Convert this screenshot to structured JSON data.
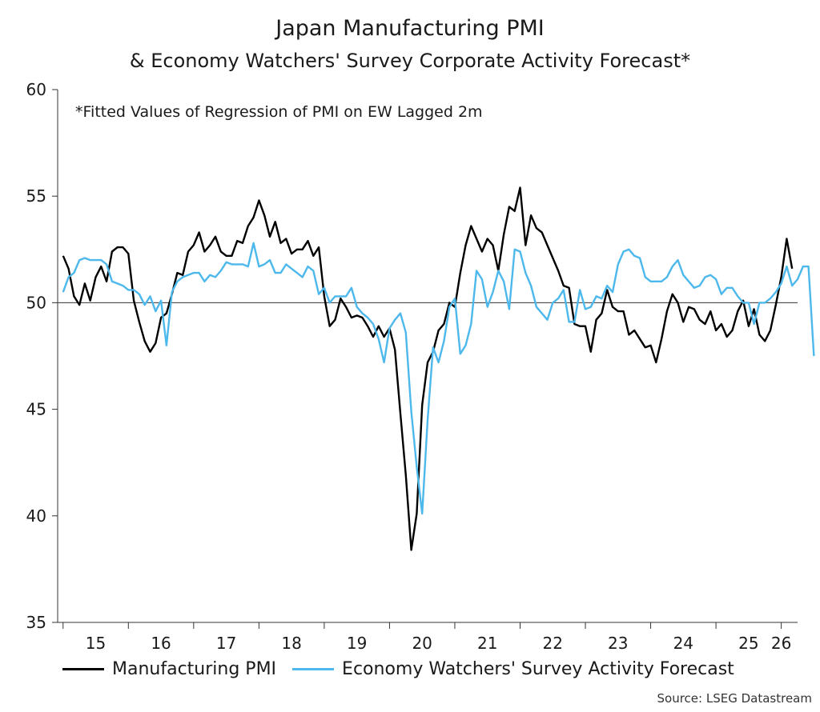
{
  "chart_data": {
    "type": "line",
    "title": "Japan Manufacturing PMI",
    "subtitle": "& Economy Watchers' Survey Corporate Activity Forecast*",
    "note": "*Fitted Values of Regression of PMI on EW Lagged 2m",
    "source": "Source: LSEG Datastream",
    "ylim": [
      35,
      60
    ],
    "yticks": [
      35,
      40,
      45,
      50,
      55,
      60
    ],
    "reference_line": 50,
    "x_start_year": 2014.917,
    "x_end_year": 2026.25,
    "xtick_labels": [
      "15",
      "16",
      "17",
      "18",
      "19",
      "20",
      "21",
      "22",
      "23",
      "24",
      "25",
      "26"
    ],
    "grid": false,
    "legend_position": "bottom",
    "series": [
      {
        "name": "Manufacturing PMI",
        "color": "#000000",
        "start": "2015-01",
        "values": [
          52.2,
          51.6,
          50.3,
          49.9,
          50.9,
          50.1,
          51.2,
          51.7,
          51.0,
          52.4,
          52.6,
          52.6,
          52.3,
          50.1,
          49.1,
          48.2,
          47.7,
          48.1,
          49.3,
          49.5,
          50.4,
          51.4,
          51.3,
          52.4,
          52.7,
          53.3,
          52.4,
          52.7,
          53.1,
          52.4,
          52.2,
          52.2,
          52.9,
          52.8,
          53.6,
          54.0,
          54.8,
          54.1,
          53.1,
          53.8,
          52.8,
          53.0,
          52.3,
          52.5,
          52.5,
          52.9,
          52.2,
          52.6,
          50.3,
          48.9,
          49.2,
          50.2,
          49.8,
          49.3,
          49.4,
          49.3,
          48.9,
          48.4,
          48.9,
          48.4,
          48.8,
          47.8,
          44.8,
          41.9,
          38.4,
          40.1,
          45.2,
          47.2,
          47.7,
          48.7,
          49.0,
          50.0,
          49.8,
          51.4,
          52.7,
          53.6,
          53.0,
          52.4,
          53.0,
          52.7,
          51.5,
          53.2,
          54.5,
          54.3,
          55.4,
          52.7,
          54.1,
          53.5,
          53.3,
          52.7,
          52.1,
          51.5,
          50.8,
          50.7,
          49.0,
          48.9,
          48.9,
          47.7,
          49.2,
          49.5,
          50.6,
          49.8,
          49.6,
          49.6,
          48.5,
          48.7,
          48.3,
          47.9,
          48.0,
          47.2,
          48.3,
          49.6,
          50.4,
          50.0,
          49.1,
          49.8,
          49.7,
          49.2,
          49.0,
          49.6,
          48.7,
          49.0,
          48.4,
          48.7,
          49.6,
          50.1,
          48.9,
          49.7,
          48.5,
          48.2,
          48.7,
          49.9,
          51.2,
          53.0,
          51.6
        ]
      },
      {
        "name": "Economy Watchers' Survey Activity Forecast",
        "color": "#4db8ec",
        "start": "2015-01",
        "values": [
          50.5,
          51.2,
          51.4,
          52.0,
          52.1,
          52.0,
          52.0,
          52.0,
          51.8,
          51.0,
          50.9,
          50.8,
          50.6,
          50.6,
          50.4,
          49.9,
          50.3,
          49.6,
          50.1,
          48.0,
          50.5,
          51.0,
          51.2,
          51.3,
          51.4,
          51.4,
          51.0,
          51.3,
          51.2,
          51.5,
          51.9,
          51.8,
          51.8,
          51.8,
          51.7,
          52.8,
          51.7,
          51.8,
          52.0,
          51.4,
          51.4,
          51.8,
          51.6,
          51.4,
          51.2,
          51.7,
          51.5,
          50.4,
          50.7,
          50.0,
          50.3,
          50.3,
          50.3,
          50.7,
          49.8,
          49.5,
          49.3,
          49.0,
          48.3,
          47.2,
          48.8,
          49.2,
          49.5,
          48.6,
          44.9,
          42.3,
          40.1,
          44.5,
          47.9,
          47.2,
          48.2,
          49.8,
          50.2,
          47.6,
          48.0,
          49.0,
          51.5,
          51.1,
          49.8,
          50.5,
          51.5,
          51.0,
          49.7,
          52.5,
          52.4,
          51.4,
          50.8,
          49.8,
          49.5,
          49.2,
          50.0,
          50.2,
          50.6,
          49.1,
          49.1,
          50.6,
          49.7,
          49.8,
          50.3,
          50.2,
          50.8,
          50.5,
          51.8,
          52.4,
          52.5,
          52.2,
          52.1,
          51.2,
          51.0,
          51.0,
          51.0,
          51.2,
          51.7,
          52.0,
          51.3,
          51.0,
          50.7,
          50.8,
          51.2,
          51.3,
          51.1,
          50.4,
          50.7,
          50.7,
          50.3,
          50.0,
          50.0,
          49.0,
          50.0,
          50.0,
          50.2,
          50.5,
          50.9,
          51.7,
          50.8,
          51.1,
          51.7,
          51.7,
          47.5
        ]
      }
    ]
  }
}
